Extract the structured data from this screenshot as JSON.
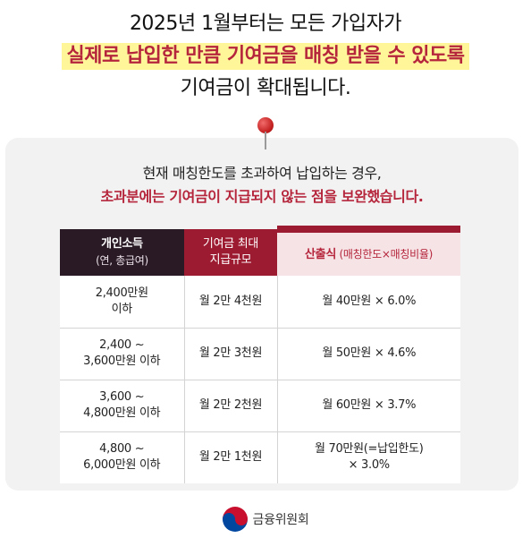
{
  "headline": {
    "line1": "2025년 1월부터는 모든 가입자가",
    "line2": "실제로 납입한 만큼 기여금을 매칭 받을 수 있도록",
    "line3": "기여금이 확대됩니다."
  },
  "card": {
    "subtitle1": "현재 매칭한도를 초과하여 납입하는 경우,",
    "subtitle2": "초과분에는 기여금이 지급되지 않는 점을 보완했습니다."
  },
  "table": {
    "header": {
      "income_main": "개인소득",
      "income_sub": "(연, 총급여)",
      "max_line1": "기여금 최대",
      "max_line2": "지급규모",
      "calc_main": "산출식",
      "calc_sub": " (매칭한도×매칭비율)"
    },
    "rows": [
      {
        "income_l1": "2,400만원",
        "income_l2": "이하",
        "max": "월 2만 4천원",
        "calc_l1": "월 40만원 × 6.0%",
        "calc_l2": ""
      },
      {
        "income_l1": "2,400 ~",
        "income_l2": "3,600만원 이하",
        "max": "월 2만 3천원",
        "calc_l1": "월 50만원 × 4.6%",
        "calc_l2": ""
      },
      {
        "income_l1": "3,600 ~",
        "income_l2": "4,800만원 이하",
        "max": "월 2만 2천원",
        "calc_l1": "월 60만원 × 3.7%",
        "calc_l2": ""
      },
      {
        "income_l1": "4,800 ~",
        "income_l2": "6,000만원 이하",
        "max": "월 2만 1천원",
        "calc_l1": "월 70만원(=납입한도)",
        "calc_l2": "× 3.0%"
      }
    ]
  },
  "footer": {
    "org_name": "금융위원회",
    "logo_icon": "taegeuk-logo-icon"
  },
  "colors": {
    "accent_red": "#b5263c",
    "header_dark": "#2a1a26",
    "header_red": "#9d1b30",
    "highlight": "#fff69a"
  }
}
